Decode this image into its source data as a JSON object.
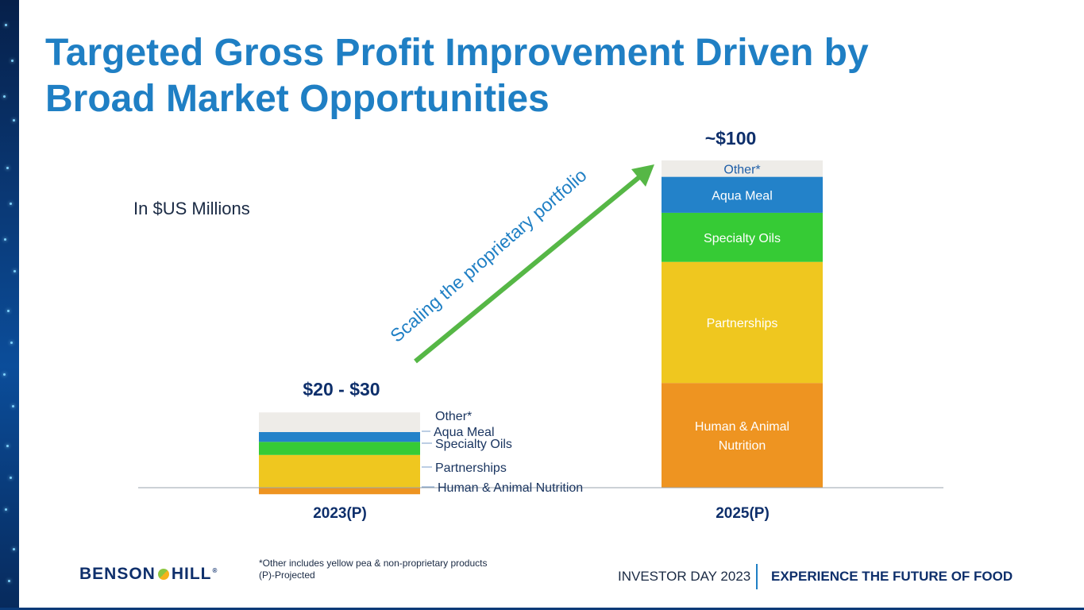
{
  "slide": {
    "title_line1": "Targeted Gross Profit Improvement Driven by",
    "title_line2": "Broad Market Opportunities",
    "units": "In $US Millions",
    "arrow_label": "Scaling the proprietary portfolio",
    "footnote_line1": "*Other includes yellow pea & non-proprietary products",
    "footnote_line2": "(P)-Projected",
    "logo_left": "BENSON",
    "logo_right": "HILL",
    "logo_reg": "®",
    "event": "INVESTOR DAY 2023",
    "tagline": "EXPERIENCE THE FUTURE OF FOOD"
  },
  "chart_data": {
    "type": "bar",
    "stacked": true,
    "categories": [
      "2023(P)",
      "2025(P)"
    ],
    "totals": [
      "$20 - $30",
      "~$100"
    ],
    "ylim": [
      0,
      100
    ],
    "grid": false,
    "colors": {
      "Human & Animal Nutrition": "#ee9421",
      "Partnerships": "#efc71f",
      "Specialty Oils": "#36cb35",
      "Aqua Meal": "#2382c9",
      "Other*": "#eeece8"
    },
    "series": [
      {
        "name": "Human & Animal Nutrition",
        "values": [
          -2,
          32
        ]
      },
      {
        "name": "Partnerships",
        "values": [
          10,
          37
        ]
      },
      {
        "name": "Specialty Oils",
        "values": [
          4,
          15
        ]
      },
      {
        "name": "Aqua Meal",
        "values": [
          3,
          11
        ]
      },
      {
        "name": "Other*",
        "values": [
          6,
          5
        ]
      }
    ],
    "bar1_labels": [
      "Other*",
      "Aqua Meal",
      "Specialty Oils",
      "Partnerships",
      "Human & Animal Nutrition"
    ],
    "bar2_labels": [
      "Other*",
      "Human & Animal Nutrition",
      "Aqua Meal",
      "Specialty Oils",
      "Partnerships"
    ]
  }
}
